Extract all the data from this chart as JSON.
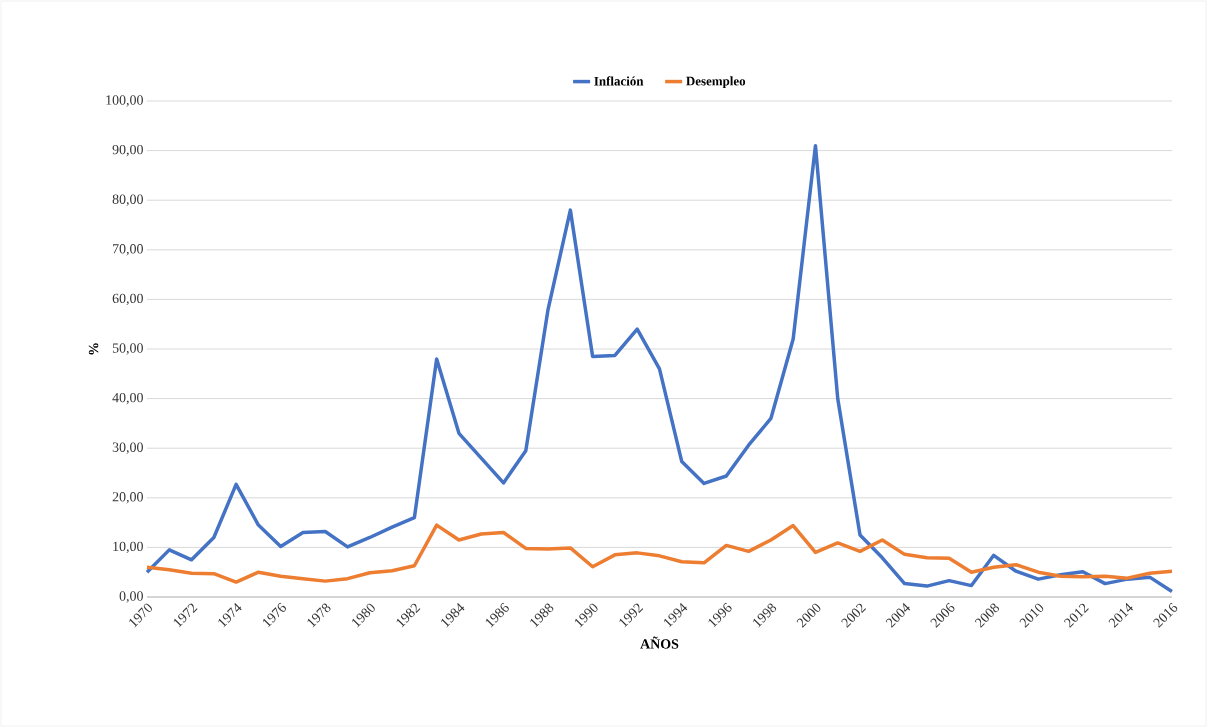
{
  "chart_data": {
    "type": "line",
    "xlabel": "AÑOS",
    "ylabel": "%",
    "x": [
      1970,
      1971,
      1972,
      1973,
      1974,
      1975,
      1976,
      1977,
      1978,
      1979,
      1980,
      1981,
      1982,
      1983,
      1984,
      1985,
      1986,
      1987,
      1988,
      1989,
      1990,
      1991,
      1992,
      1993,
      1994,
      1995,
      1996,
      1997,
      1998,
      1999,
      2000,
      2001,
      2002,
      2003,
      2004,
      2005,
      2006,
      2007,
      2008,
      2009,
      2010,
      2011,
      2012,
      2013,
      2014,
      2015,
      2016
    ],
    "series": [
      {
        "name": "Inflación",
        "color": "#4472c4",
        "values": [
          5.0,
          9.5,
          7.5,
          12.0,
          22.7,
          14.5,
          10.2,
          13.0,
          13.2,
          10.1,
          12.0,
          14.1,
          16.0,
          48.0,
          33.0,
          28.0,
          23.0,
          29.5,
          58.0,
          78.0,
          48.5,
          48.7,
          54.0,
          46.0,
          27.3,
          22.9,
          24.4,
          30.6,
          36.0,
          52.0,
          91.0,
          40.0,
          12.5,
          7.9,
          2.7,
          2.2,
          3.3,
          2.3,
          8.4,
          5.2,
          3.6,
          4.5,
          5.1,
          2.7,
          3.6,
          4.0,
          1.1
        ]
      },
      {
        "name": "Desempleo",
        "color": "#ed7d31",
        "values": [
          6.0,
          5.5,
          4.8,
          4.7,
          3.0,
          5.0,
          4.2,
          3.7,
          3.2,
          3.7,
          4.9,
          5.3,
          6.3,
          14.5,
          11.5,
          12.7,
          13.0,
          9.8,
          9.7,
          9.9,
          6.1,
          8.5,
          8.9,
          8.3,
          7.1,
          6.9,
          10.4,
          9.2,
          11.5,
          14.4,
          9.0,
          10.9,
          9.2,
          11.5,
          8.6,
          7.9,
          7.8,
          5.0,
          6.0,
          6.5,
          5.0,
          4.2,
          4.1,
          4.2,
          3.8,
          4.8,
          5.2
        ]
      }
    ],
    "xlim": [
      1970,
      2016
    ],
    "xticks": [
      1970,
      1972,
      1974,
      1976,
      1978,
      1980,
      1982,
      1984,
      1986,
      1988,
      1990,
      1992,
      1994,
      1996,
      1998,
      2000,
      2002,
      2004,
      2006,
      2008,
      2010,
      2012,
      2014,
      2016
    ],
    "ylim": [
      0,
      100
    ],
    "yticks": [
      {
        "value": 0,
        "label": "0,00"
      },
      {
        "value": 10,
        "label": "10,00"
      },
      {
        "value": 20,
        "label": "20,00"
      },
      {
        "value": 30,
        "label": "30,00"
      },
      {
        "value": 40,
        "label": "40,00"
      },
      {
        "value": 50,
        "label": "50,00"
      },
      {
        "value": 60,
        "label": "60,00"
      },
      {
        "value": 70,
        "label": "70,00"
      },
      {
        "value": 80,
        "label": "80,00"
      },
      {
        "value": 90,
        "label": "90,00"
      },
      {
        "value": 100,
        "label": "100,00"
      }
    ],
    "grid": "y",
    "legend": "top",
    "marker": "none",
    "line_style": "solid"
  }
}
